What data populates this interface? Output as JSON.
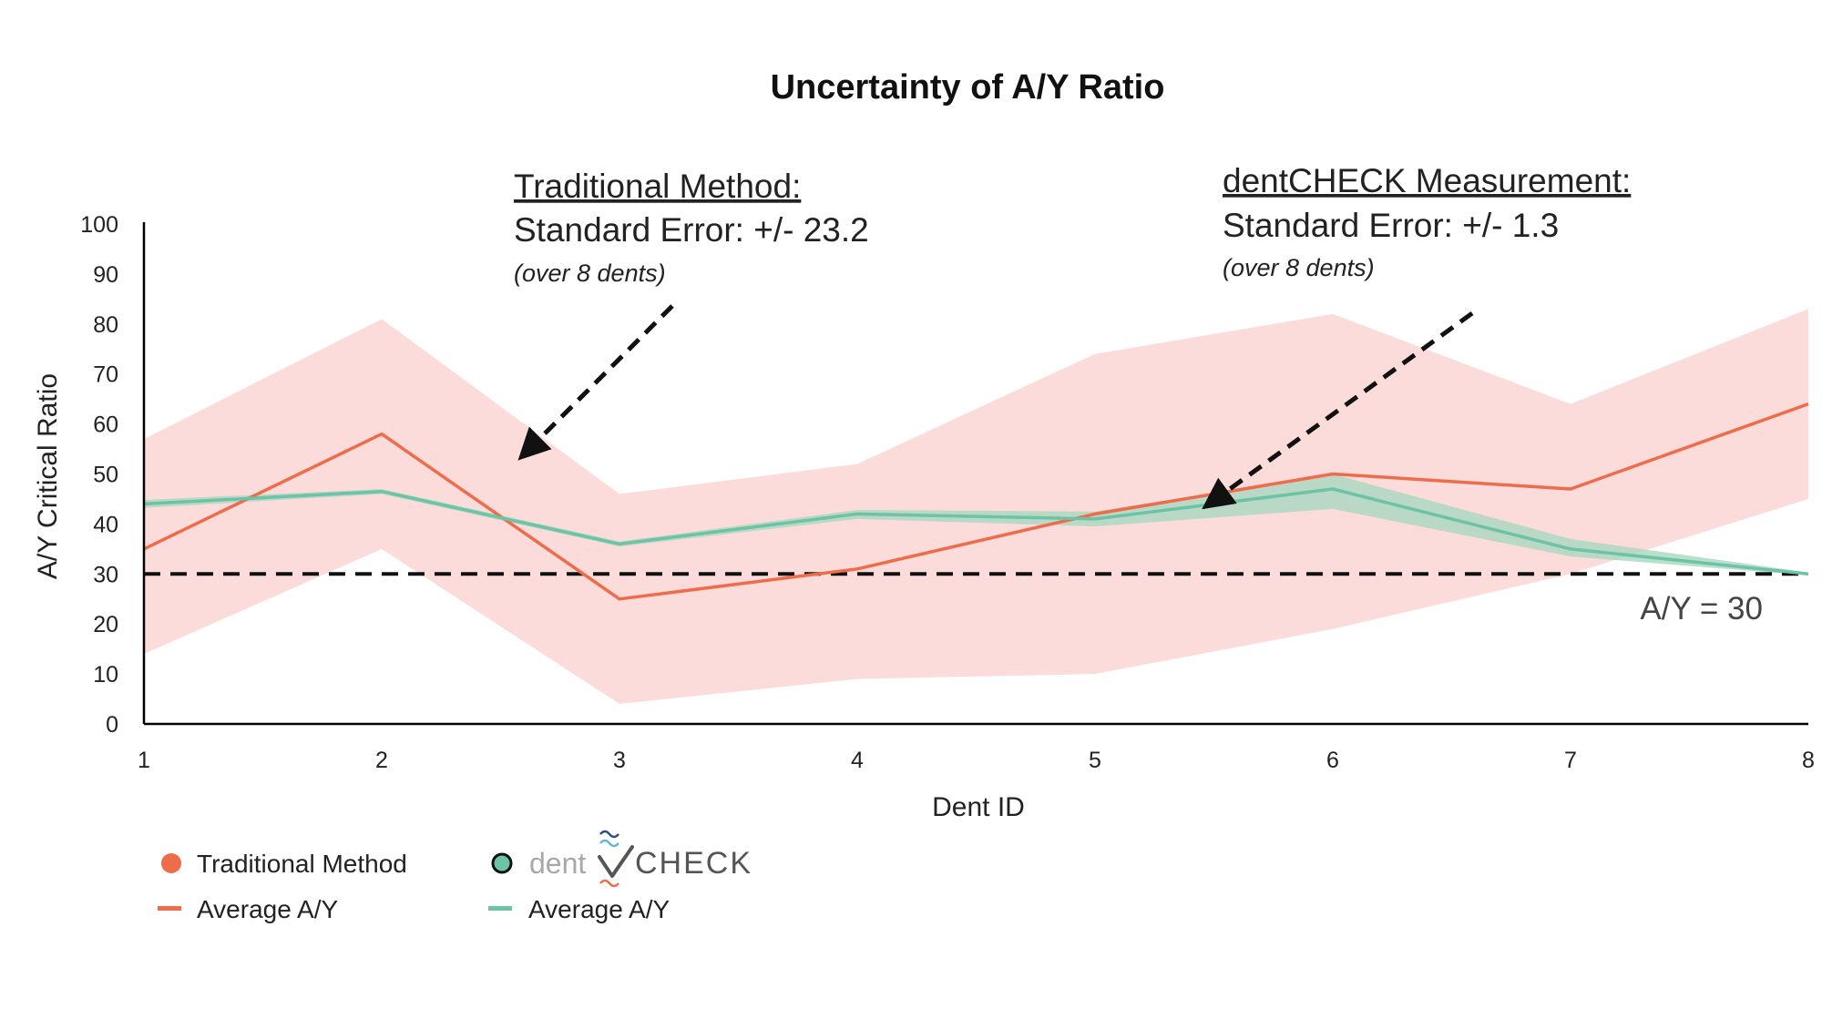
{
  "chart_data": {
    "type": "line",
    "title": "Uncertainty of A/Y Ratio",
    "xlabel": "Dent ID",
    "ylabel": "A/Y Critical Ratio",
    "categories": [
      "1",
      "2",
      "3",
      "4",
      "5",
      "6",
      "7",
      "8"
    ],
    "y_ticks": [
      "0",
      "10",
      "20",
      "30",
      "40",
      "50",
      "60",
      "70",
      "80",
      "90",
      "100"
    ],
    "ylim": [
      0,
      100
    ],
    "grid": false,
    "legend_position": "bottom-left",
    "series": [
      {
        "name": "Average A/Y",
        "group": "Traditional Method",
        "color": "#ef6c4a",
        "band_color": "#f9d0cf",
        "values": [
          35,
          58,
          25,
          31,
          42,
          50,
          47,
          64
        ],
        "band_upper": [
          57,
          81,
          46,
          52,
          74,
          82,
          64,
          83
        ],
        "band_lower": [
          14,
          35,
          4,
          9,
          10,
          19,
          30,
          45
        ]
      },
      {
        "name": "Average A/Y",
        "group": "dentCHECK",
        "color": "#6cc3a5",
        "band_color": "#a9d8c0",
        "values": [
          44,
          46.5,
          36,
          42,
          41,
          47,
          35,
          30
        ],
        "band_upper": [
          44.8,
          47,
          36.5,
          42.8,
          42.5,
          50,
          37,
          30.3
        ],
        "band_lower": [
          43.2,
          46,
          35.5,
          41,
          39.5,
          43,
          33.5,
          29.7
        ]
      }
    ],
    "reference_line": {
      "value": 30,
      "label": "A/Y = 30"
    },
    "annotations": [
      {
        "heading": "Traditional Method:",
        "body": "Standard Error: +/- 23.2",
        "note": "(over 8 dents)",
        "arrow_to": {
          "x": 2.6,
          "y": 54
        }
      },
      {
        "heading": "dentCHECK Measurement: ",
        "body": "Standard Error: +/- 1.3",
        "note": "(over 8 dents)",
        "arrow_to": {
          "x": 5.48,
          "y": 44
        }
      }
    ]
  },
  "legend": {
    "traditional_label": "Traditional Method",
    "traditional_avg_label": "Average A/Y",
    "dentcheck_logo_dent": "dent",
    "dentcheck_logo_check": "CHECK",
    "dentcheck_avg_label": "Average A/Y",
    "traditional_color": "#ef6c4a",
    "dentcheck_color": "#6cc3a5"
  }
}
